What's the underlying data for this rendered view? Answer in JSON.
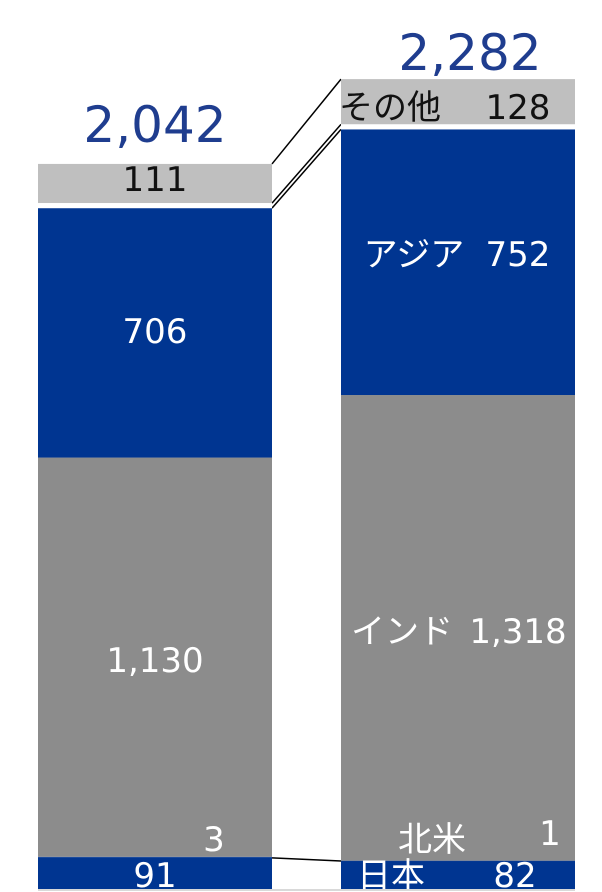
{
  "chart_data": {
    "type": "bar",
    "stacked": true,
    "categories": [
      "",
      ""
    ],
    "totals": [
      "2,042",
      "2,282"
    ],
    "series": [
      {
        "name": "日本",
        "values": [
          91,
          82
        ],
        "labels": [
          "91",
          "82"
        ],
        "color": "#003591",
        "text_color": "#ffffff"
      },
      {
        "name": "北米",
        "values": [
          3,
          1
        ],
        "labels": [
          "3",
          "1"
        ],
        "color": "#003591",
        "text_color": "#ffffff"
      },
      {
        "name": "インド",
        "values": [
          1130,
          1318
        ],
        "labels": [
          "1,130",
          "1,318"
        ],
        "color": "#8c8c8c",
        "text_color": "#ffffff"
      },
      {
        "name": "アジア",
        "values": [
          706,
          752
        ],
        "labels": [
          "706",
          "752"
        ],
        "color": "#003591",
        "text_color": "#ffffff"
      },
      {
        "name": "その他",
        "values": [
          111,
          128
        ],
        "labels": [
          "111",
          "128"
        ],
        "color": "#bfbfbf",
        "text_color": "#111111"
      }
    ],
    "total_color": "#1f3d8f"
  }
}
